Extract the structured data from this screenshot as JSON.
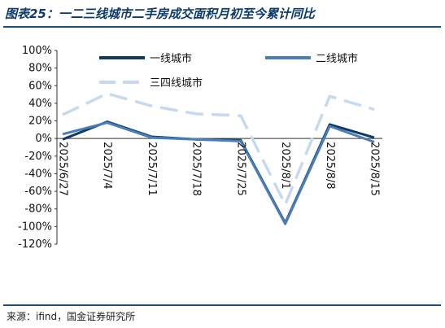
{
  "header": {
    "title": "图表25：一二三线城市二手房成交面积月初至今累计同比"
  },
  "footer": {
    "source": "来源：ifind，国金证券研究所"
  },
  "chart_data": {
    "type": "line",
    "categories": [
      "2025/6/27",
      "2025/7/4",
      "2025/7/11",
      "2025/7/18",
      "2025/7/25",
      "2025/8/1",
      "2025/8/8",
      "2025/8/15"
    ],
    "series": [
      {
        "name": "一线城市",
        "values": [
          -1,
          19,
          2,
          -1,
          -2,
          -96,
          16,
          1
        ],
        "color": "#0f3b5f",
        "dash": false
      },
      {
        "name": "二线城市",
        "values": [
          5,
          18,
          1,
          -1,
          -3,
          -97,
          14,
          -4
        ],
        "color": "#4a7ebb",
        "dash": false
      },
      {
        "name": "三四线城市",
        "values": [
          27,
          51,
          37,
          28,
          26,
          -75,
          48,
          33
        ],
        "color": "#c6d9ee",
        "dash": true
      }
    ],
    "ylim": [
      -120,
      100
    ],
    "yticks": [
      -120,
      -100,
      -80,
      -60,
      -40,
      -20,
      0,
      20,
      40,
      60,
      80,
      100
    ],
    "y_format": "percent",
    "grid": false,
    "legend": "top"
  }
}
